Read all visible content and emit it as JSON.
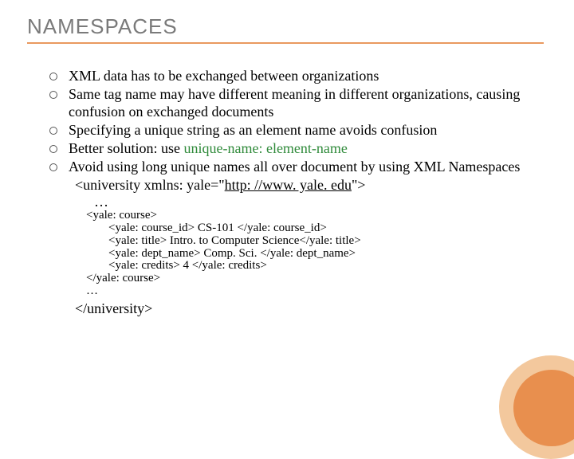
{
  "title": "NAMESPACES",
  "bullets": [
    "XML data has to be exchanged between organizations",
    "Same tag name may have different meaning in different organizations, causing confusion on exchanged documents",
    "Specifying a unique string as an element name avoids confusion",
    "",
    "Avoid using long unique names all over document by using XML Namespaces"
  ],
  "bullet4_prefix": "Better solution: use  ",
  "bullet4_green": "unique-name: element-name",
  "xmlns_prefix": "<university xmlns: yale=\"",
  "xmlns_link": "http: //www. yale. edu",
  "xmlns_suffix": "\">",
  "ellipsis": "…",
  "code": {
    "l1": "<yale: course>",
    "l2": "<yale: course_id> CS-101 </yale: course_id>",
    "l3": "<yale: title> Intro. to Computer Science</yale: title>",
    "l4": "<yale: dept_name> Comp. Sci. </yale: dept_name>",
    "l5": "<yale: credits> 4 </yale: credits>",
    "l6": "</yale: course>",
    "l7": "…"
  },
  "closing": "</university>",
  "colors": {
    "title": "#7a7a7a",
    "rule": "#e9995f",
    "green": "#2f8a3a",
    "circle_outer": "#f3c89d",
    "circle_inner": "#e88f4e"
  }
}
